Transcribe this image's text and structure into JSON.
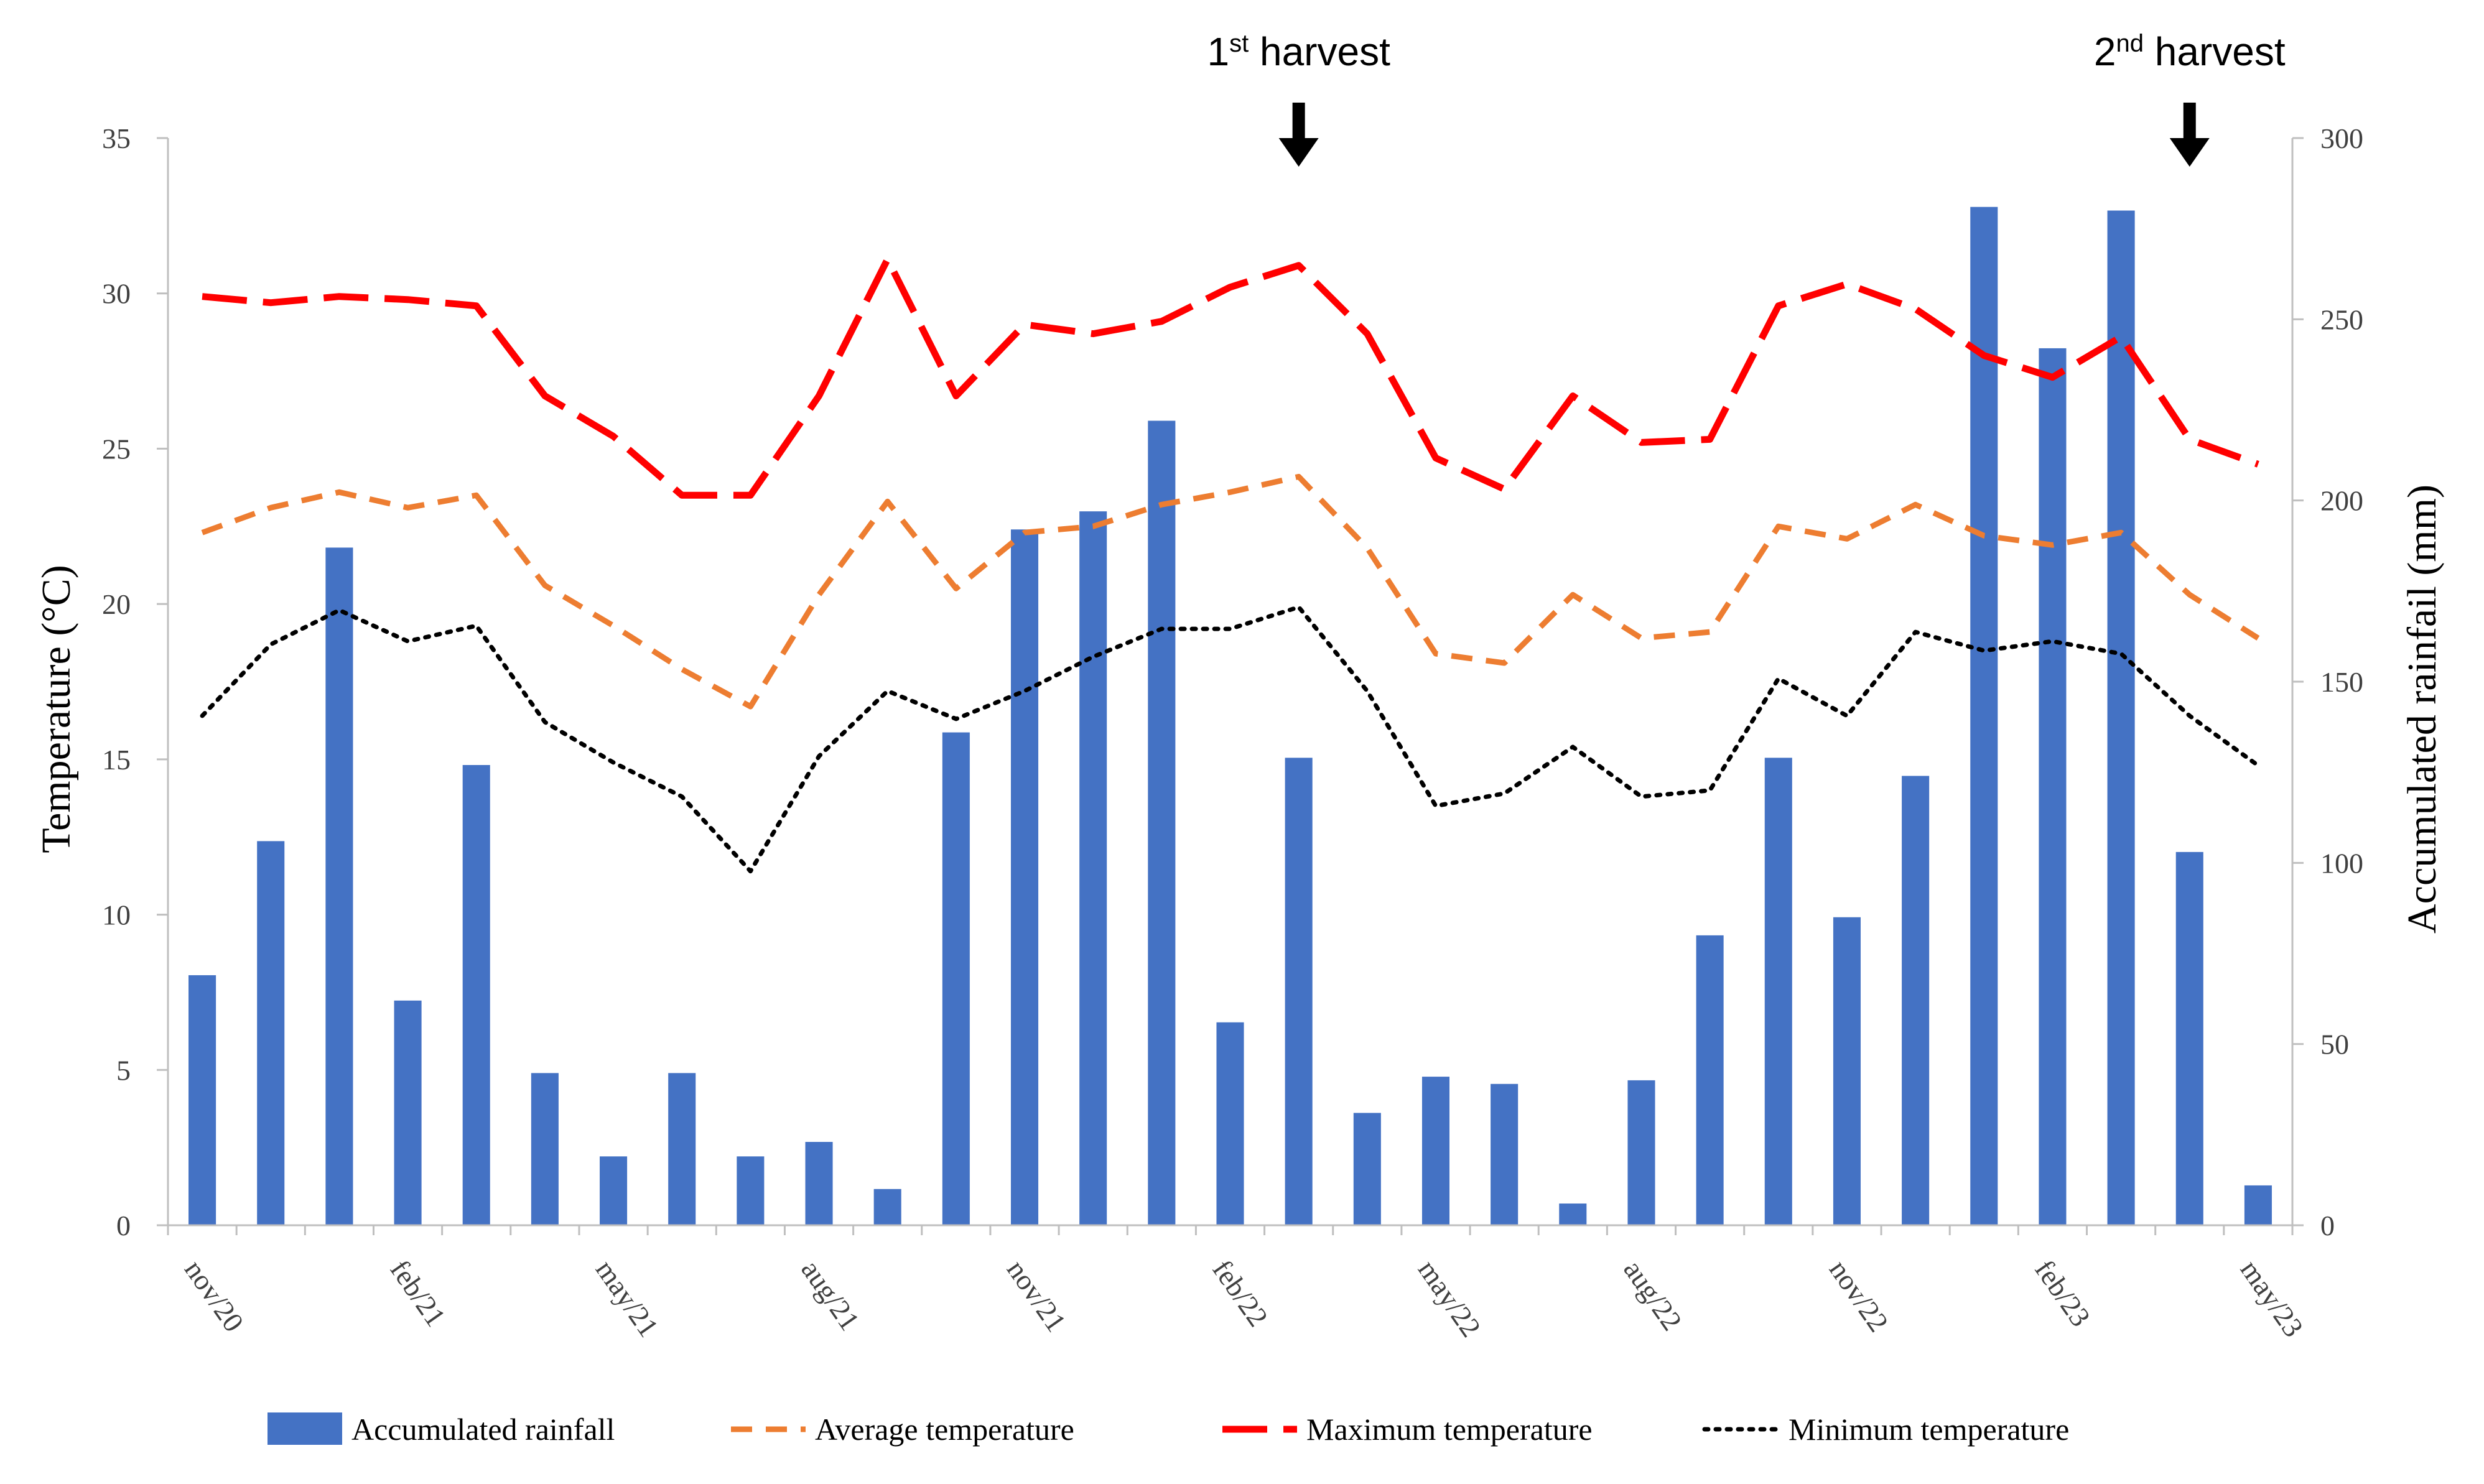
{
  "chart_data": {
    "type": "bar+line",
    "x": [
      "nov/20",
      "dec/20",
      "jan/21",
      "feb/21",
      "mar/21",
      "apr/21",
      "may/21",
      "jun/21",
      "jul/21",
      "aug/21",
      "sep/21",
      "oct/21",
      "nov/21",
      "dec/21",
      "jan/22",
      "feb/22",
      "mar/22",
      "apr/22",
      "may/22",
      "jun/22",
      "jul/22",
      "aug/22",
      "sep/22",
      "oct/22",
      "nov/22",
      "dec/22",
      "jan/23",
      "feb/23",
      "mar/23",
      "apr/23",
      "may/23"
    ],
    "x_tick_labels": [
      "nov/20",
      "feb/21",
      "may/21",
      "aug/21",
      "nov/21",
      "feb/22",
      "may/22",
      "aug/22",
      "nov/22",
      "feb/23",
      "may/23"
    ],
    "ylabel_left": "Temperature (°C)",
    "ylabel_right": "Accumulated rainfail (mm)",
    "ylim_left": [
      0,
      35
    ],
    "ylim_right": [
      0,
      300
    ],
    "yticks_left": [
      "0",
      "5",
      "10",
      "15",
      "20",
      "25",
      "30",
      "35"
    ],
    "yticks_right": [
      "0",
      "50",
      "100",
      "150",
      "200",
      "250",
      "300"
    ],
    "legend_position": "bottom",
    "series": [
      {
        "name": "Accumulated rainfall",
        "kind": "bar",
        "axis": "right",
        "color": "#4472C4",
        "values": [
          69,
          106,
          187,
          62,
          127,
          42,
          19,
          42,
          19,
          23,
          10,
          136,
          192,
          197,
          222,
          56,
          129,
          31,
          41,
          39,
          6,
          40,
          80,
          129,
          85,
          124,
          281,
          242,
          280,
          103,
          11
        ]
      },
      {
        "name": "Average temperature",
        "kind": "line",
        "axis": "left",
        "color": "#ED7D31",
        "dash": "dashed",
        "values": [
          22.3,
          23.1,
          23.6,
          23.1,
          23.5,
          20.6,
          19.3,
          17.9,
          16.7,
          20.3,
          23.3,
          20.5,
          22.3,
          22.5,
          23.2,
          23.6,
          24.1,
          21.8,
          18.4,
          18.1,
          20.3,
          18.9,
          19.1,
          22.5,
          22.1,
          23.2,
          22.2,
          21.9,
          22.3,
          20.3,
          18.9
        ]
      },
      {
        "name": "Maximum temperature",
        "kind": "line",
        "axis": "left",
        "color": "#FF0000",
        "dash": "long-dash",
        "values": [
          29.9,
          29.7,
          29.9,
          29.8,
          29.6,
          26.7,
          25.4,
          23.5,
          23.5,
          26.7,
          31.1,
          26.7,
          29.0,
          28.7,
          29.1,
          30.2,
          30.9,
          28.7,
          24.7,
          23.7,
          26.7,
          25.2,
          25.3,
          29.6,
          30.3,
          29.5,
          28.0,
          27.3,
          28.6,
          25.3,
          24.5
        ]
      },
      {
        "name": "Minimum temperature",
        "kind": "line",
        "axis": "left",
        "color": "#000000",
        "dash": "dotted",
        "values": [
          16.4,
          18.7,
          19.8,
          18.8,
          19.3,
          16.2,
          14.9,
          13.8,
          11.4,
          15.1,
          17.2,
          16.3,
          17.2,
          18.3,
          19.2,
          19.2,
          19.9,
          17.2,
          13.5,
          13.9,
          15.4,
          13.8,
          14.0,
          17.6,
          16.4,
          19.1,
          18.5,
          18.8,
          18.4,
          16.4,
          14.8
        ]
      }
    ],
    "annotations": [
      {
        "text": "1",
        "superscript": "st",
        "suffix": " harvest",
        "x": "mar/22"
      },
      {
        "text": "2",
        "superscript": "nd",
        "suffix": " harvest",
        "x": "apr/23"
      }
    ]
  }
}
